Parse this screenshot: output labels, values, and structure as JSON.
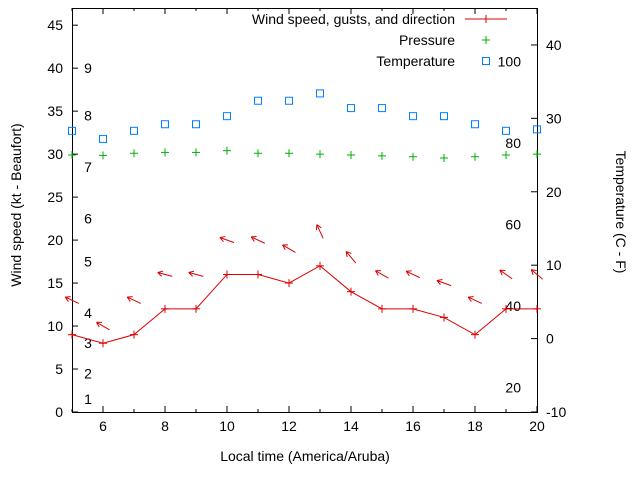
{
  "window": {
    "background": "#ffffff"
  },
  "chart_data": {
    "type": "line",
    "title": "",
    "xlabel": "Local time (America/Aruba)",
    "ylabel_left": "Wind speed (kt - Beaufort)",
    "ylabel_right": "Temperature (C - F)",
    "grid": false,
    "legend_position": "top-right",
    "axis_color": "#000000",
    "x_range": [
      5,
      20
    ],
    "x_major_ticks": [
      6,
      8,
      10,
      12,
      14,
      16,
      18,
      20
    ],
    "x_minor_step": 1,
    "y_left_range": [
      0,
      47
    ],
    "y_left_ticks": [
      0,
      5,
      10,
      15,
      20,
      25,
      30,
      35,
      40,
      45
    ],
    "y_right_ticks_c": [
      -10,
      0,
      10,
      20,
      30,
      40
    ],
    "c_offset": 10,
    "c_to_kt_scale": 0.854,
    "beaufort_labels": [
      {
        "label": "1",
        "kt": 1.5
      },
      {
        "label": "2",
        "kt": 4.5
      },
      {
        "label": "3",
        "kt": 8
      },
      {
        "label": "4",
        "kt": 11.5
      },
      {
        "label": "5",
        "kt": 17.5
      },
      {
        "label": "6",
        "kt": 22.5
      },
      {
        "label": "7",
        "kt": 28.5
      },
      {
        "label": "8",
        "kt": 34.5
      },
      {
        "label": "9",
        "kt": 40
      }
    ],
    "fahrenheit_labels": [
      20,
      40,
      60,
      80,
      100
    ],
    "x": [
      5,
      6,
      7,
      8,
      9,
      10,
      11,
      12,
      13,
      14,
      15,
      16,
      17,
      18,
      19,
      20
    ],
    "series": [
      {
        "name": "Wind speed, gusts, and direction",
        "color": "#dd0000",
        "marker": "plus-line",
        "wind_kt": [
          9,
          8,
          9,
          12,
          12,
          16,
          16,
          15,
          17,
          14,
          12,
          12,
          11,
          9,
          12,
          12
        ],
        "gust_kt": [
          13,
          10,
          13,
          16,
          16,
          20,
          20,
          19,
          21,
          18,
          16,
          16,
          15,
          13,
          16,
          16
        ],
        "direction_deg": [
          295,
          300,
          295,
          285,
          285,
          290,
          295,
          300,
          335,
          320,
          300,
          295,
          290,
          295,
          305,
          310
        ]
      },
      {
        "name": "Pressure",
        "color": "#00b000",
        "marker": "plus",
        "values": [
          29.9,
          29.85,
          30.1,
          30.2,
          30.2,
          30.4,
          30.1,
          30.1,
          30.0,
          29.9,
          29.8,
          29.7,
          29.55,
          29.7,
          29.9,
          30.0
        ]
      },
      {
        "name": "Temperature",
        "color": "#0080ff",
        "marker": "open-square",
        "values_c": [
          28.3,
          27.2,
          28.3,
          29.2,
          29.2,
          30.3,
          32.4,
          32.4,
          33.4,
          31.4,
          31.4,
          30.3,
          30.3,
          29.2,
          28.3,
          28.5
        ]
      }
    ]
  }
}
